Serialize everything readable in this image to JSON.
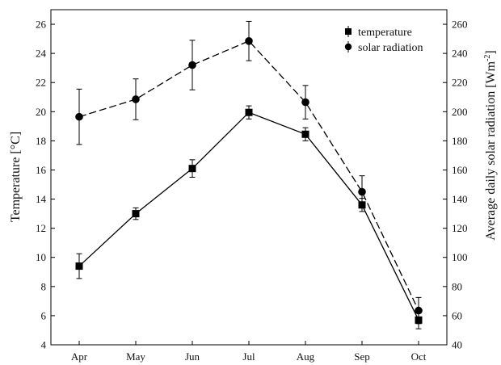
{
  "chart_data": {
    "type": "line",
    "categories": [
      "Apr",
      "May",
      "Jun",
      "Jul",
      "Aug",
      "Sep",
      "Oct"
    ],
    "ylabel_left": "Temperature [°C]",
    "ylabel_right_main": "Average daily solar radiation [Wm",
    "ylabel_right_sup": "-2",
    "ylabel_right_close": "]",
    "ylim_left": [
      4,
      27
    ],
    "ylim_right": [
      40,
      270
    ],
    "yticks_left": [
      4,
      6,
      8,
      10,
      12,
      14,
      16,
      18,
      20,
      22,
      24,
      26
    ],
    "yticks_right": [
      40,
      60,
      80,
      100,
      120,
      140,
      160,
      180,
      200,
      220,
      240,
      260
    ],
    "grid": false,
    "legend_position": "top-right",
    "series": [
      {
        "name": "temperature",
        "axis": "left",
        "marker": "square",
        "line": "solid",
        "values": [
          9.4,
          13.0,
          16.1,
          19.95,
          18.45,
          13.6,
          5.7
        ],
        "err": [
          0.85,
          0.4,
          0.6,
          0.45,
          0.45,
          0.45,
          0.6
        ]
      },
      {
        "name": "solar radiation",
        "axis": "right",
        "marker": "circle",
        "line": "dashed",
        "values": [
          196.5,
          208.5,
          232,
          248.5,
          206.5,
          145,
          63.5
        ],
        "err": [
          19,
          14,
          17,
          13.5,
          11.5,
          11,
          9
        ]
      }
    ]
  }
}
